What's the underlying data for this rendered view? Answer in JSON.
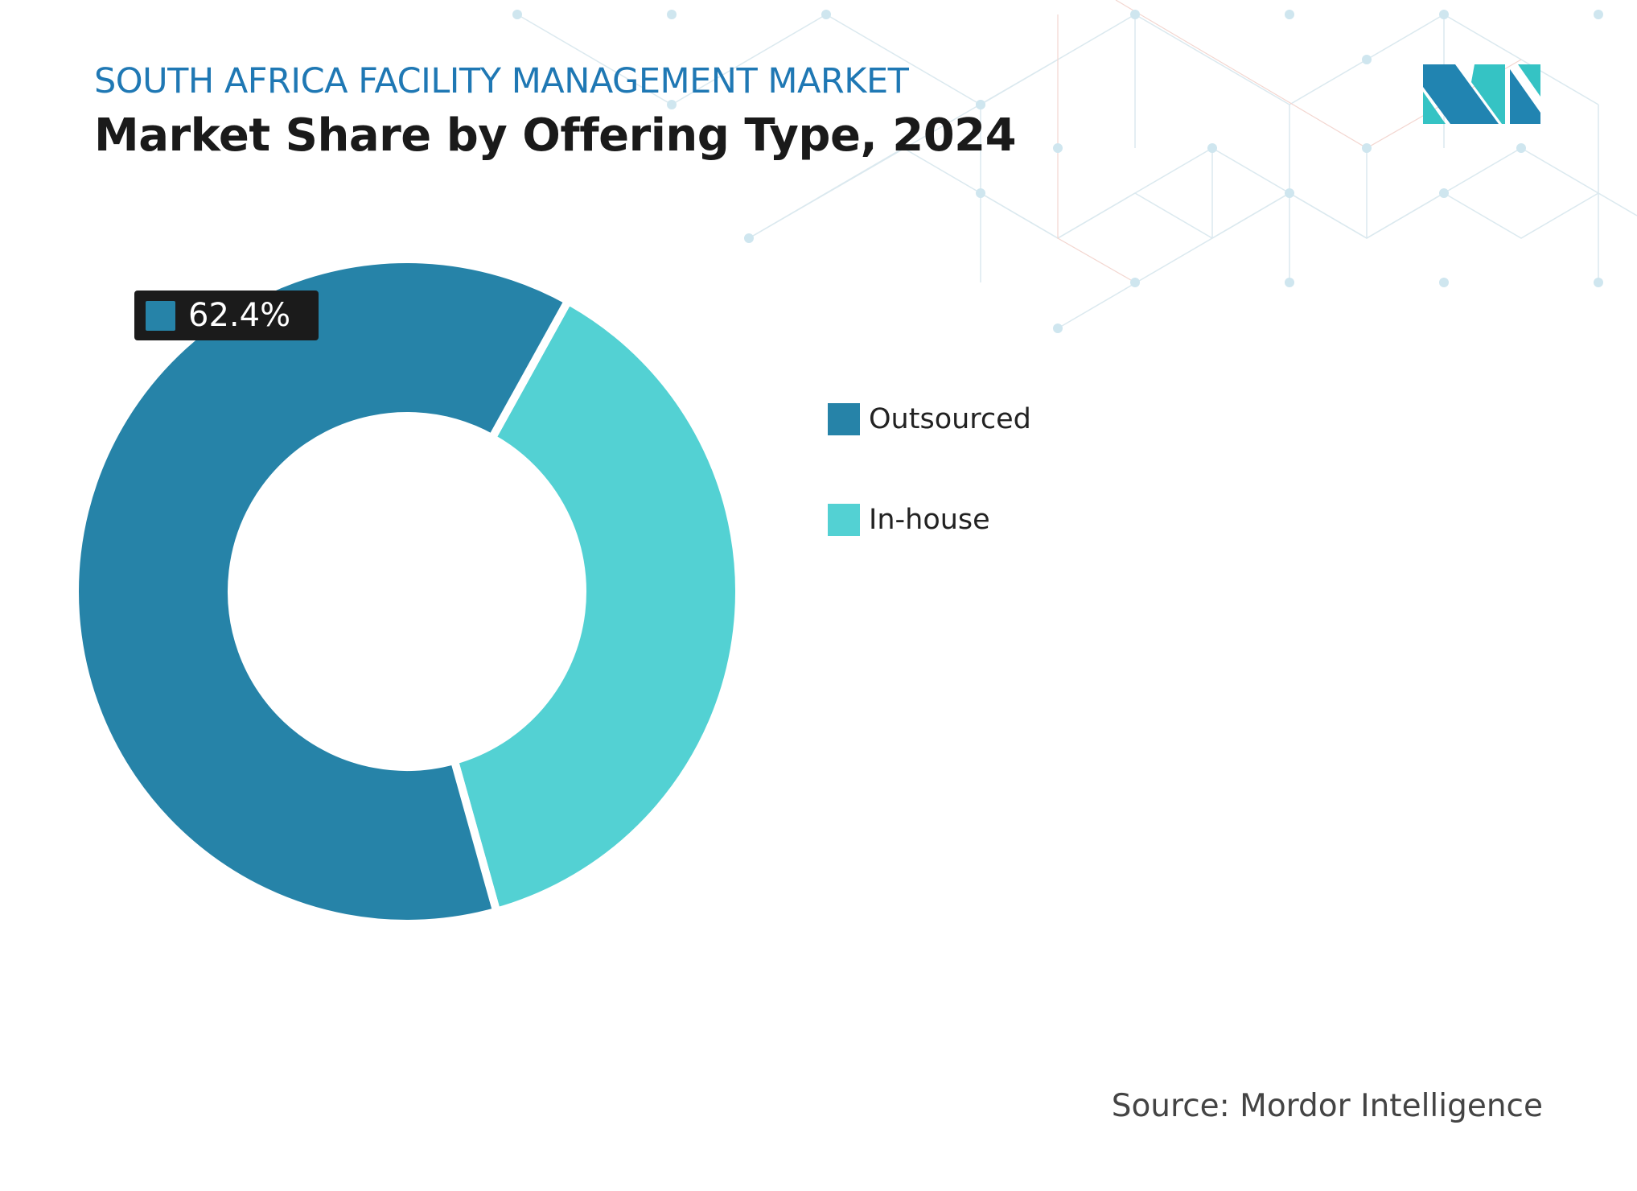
{
  "header": {
    "subtitle": "SOUTH AFRICA FACILITY MANAGEMENT MARKET",
    "title": "Market Share by Offering Type, 2024"
  },
  "chart_data": {
    "type": "donut",
    "categories": [
      "Outsourced",
      "In-house"
    ],
    "values": [
      62.4,
      37.6
    ],
    "colors": [
      "#2683a8",
      "#53d1d3"
    ],
    "data_labels": [
      {
        "category": "Outsourced",
        "text": "62.4%"
      }
    ],
    "legend_position": "right"
  },
  "legend": {
    "items": [
      {
        "label": "Outsourced",
        "color": "#2683a8"
      },
      {
        "label": "In-house",
        "color": "#53d1d3"
      }
    ]
  },
  "source": "Source: Mordor Intelligence",
  "logo": {
    "name": "mordor-intelligence-logo",
    "colors": [
      "#2184b1",
      "#35c3c4"
    ]
  }
}
